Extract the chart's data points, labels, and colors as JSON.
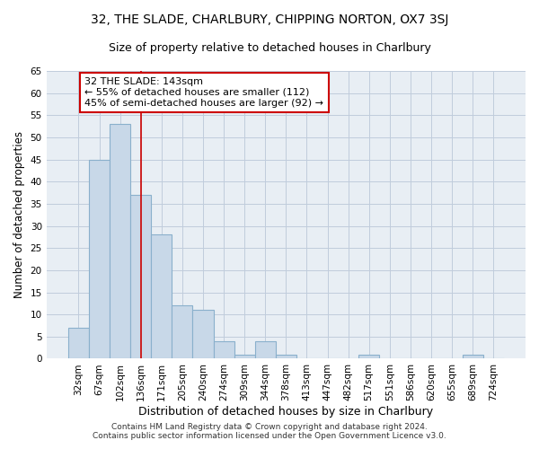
{
  "title": "32, THE SLADE, CHARLBURY, CHIPPING NORTON, OX7 3SJ",
  "subtitle": "Size of property relative to detached houses in Charlbury",
  "xlabel": "Distribution of detached houses by size in Charlbury",
  "ylabel": "Number of detached properties",
  "categories": [
    "32sqm",
    "67sqm",
    "102sqm",
    "136sqm",
    "171sqm",
    "205sqm",
    "240sqm",
    "274sqm",
    "309sqm",
    "344sqm",
    "378sqm",
    "413sqm",
    "447sqm",
    "482sqm",
    "517sqm",
    "551sqm",
    "586sqm",
    "620sqm",
    "655sqm",
    "689sqm",
    "724sqm"
  ],
  "values": [
    7,
    45,
    53,
    37,
    28,
    12,
    11,
    4,
    1,
    4,
    1,
    0,
    0,
    0,
    1,
    0,
    0,
    0,
    0,
    1,
    0
  ],
  "bar_color": "#c8d8e8",
  "bar_edge_color": "#8ab0cc",
  "bar_linewidth": 0.8,
  "vline_x_index": 3,
  "vline_color": "#cc0000",
  "annotation_line1": "32 THE SLADE: 143sqm",
  "annotation_line2": "← 55% of detached houses are smaller (112)",
  "annotation_line3": "45% of semi-detached houses are larger (92) →",
  "annotation_box_color": "#cc0000",
  "ylim": [
    0,
    65
  ],
  "yticks": [
    0,
    5,
    10,
    15,
    20,
    25,
    30,
    35,
    40,
    45,
    50,
    55,
    60,
    65
  ],
  "grid_color": "#c0ccdc",
  "bg_color": "#e8eef4",
  "footer_text": "Contains HM Land Registry data © Crown copyright and database right 2024.\nContains public sector information licensed under the Open Government Licence v3.0.",
  "title_fontsize": 10,
  "subtitle_fontsize": 9,
  "xlabel_fontsize": 9,
  "ylabel_fontsize": 8.5,
  "tick_fontsize": 7.5,
  "annotation_fontsize": 8,
  "footer_fontsize": 6.5
}
